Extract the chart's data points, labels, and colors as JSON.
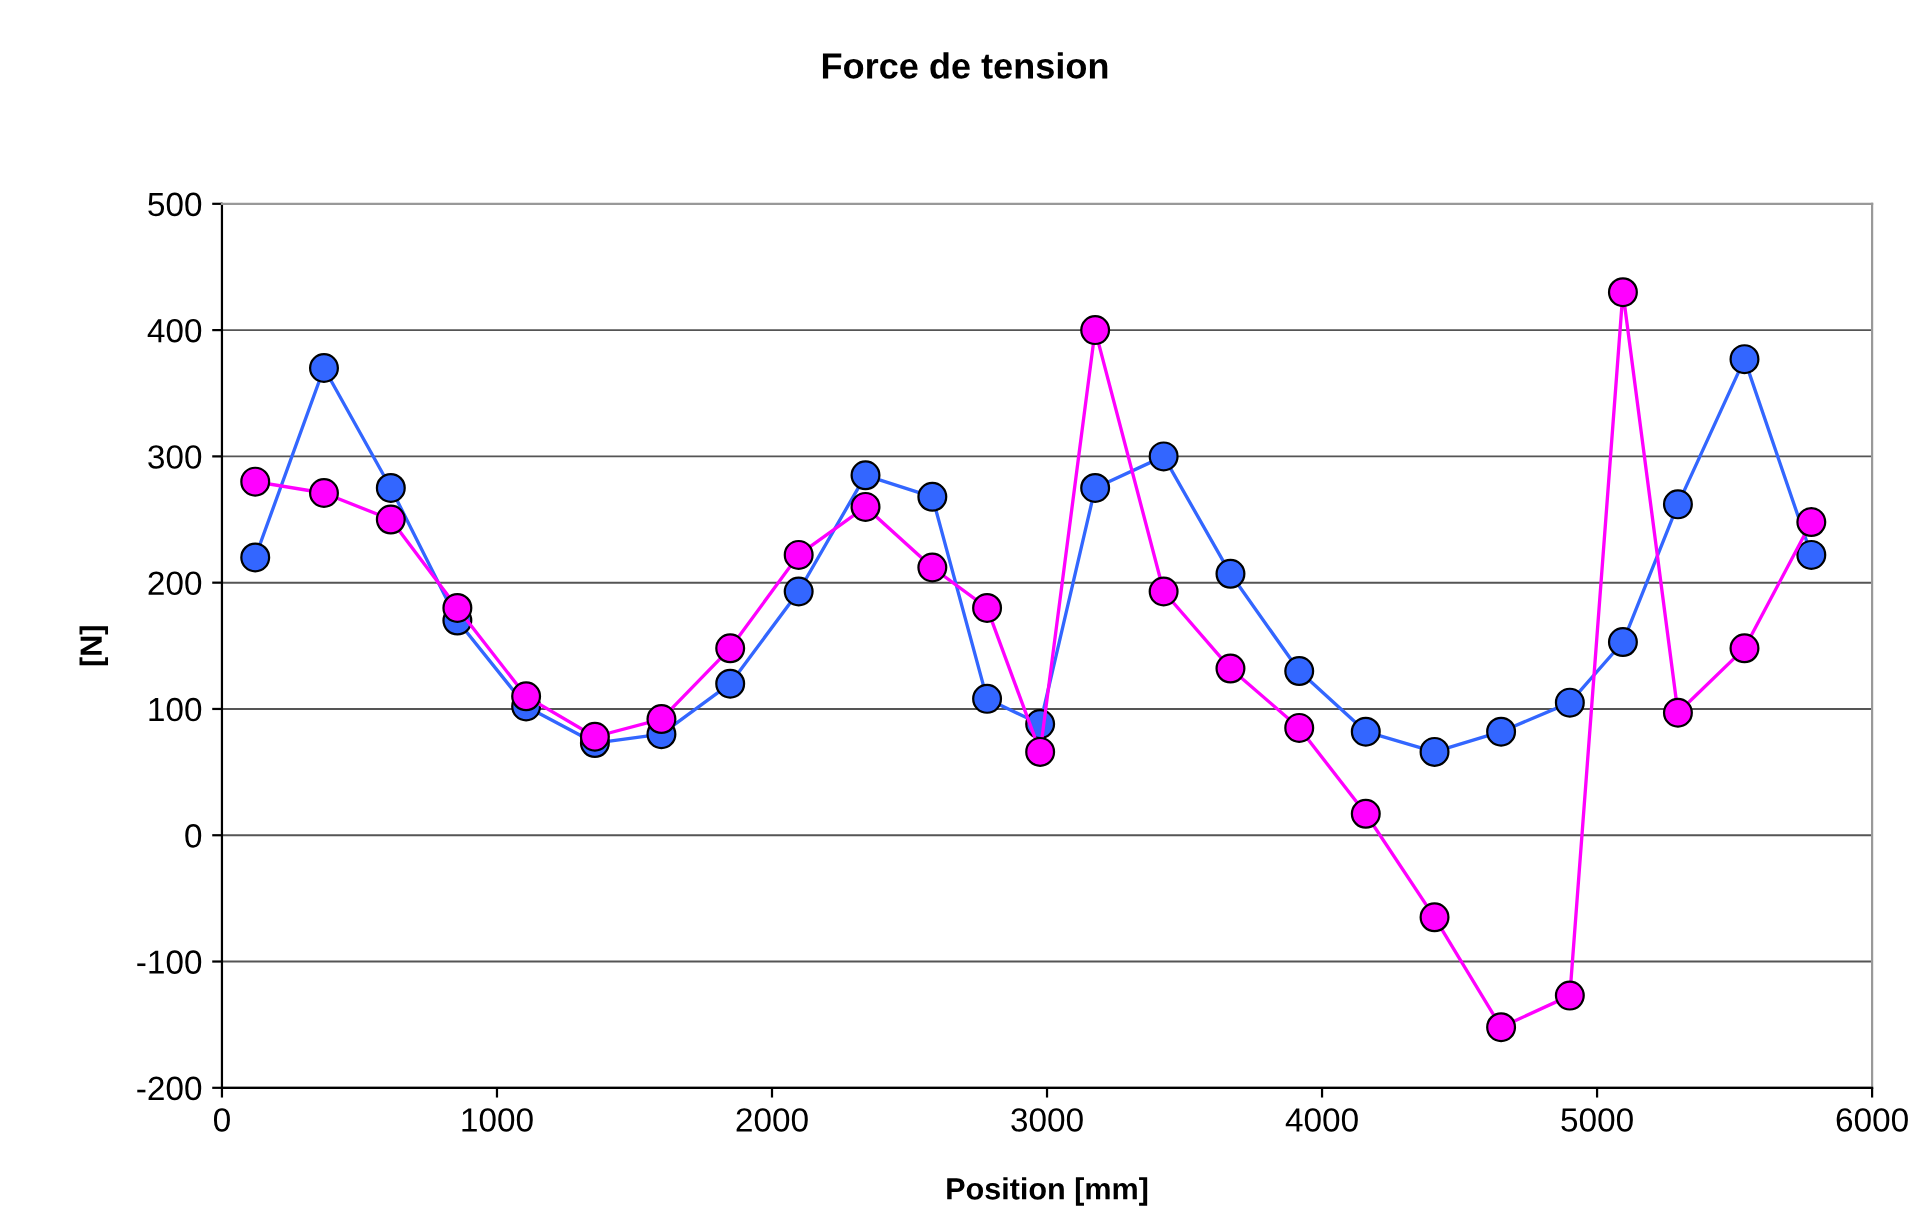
{
  "chart_data": {
    "type": "line",
    "title": "Force de tension",
    "xlabel": "Position [mm]",
    "ylabel": "[N]",
    "x": [
      121,
      371,
      614,
      856,
      1106,
      1356,
      1598,
      1848,
      2097,
      2340,
      2583,
      2782,
      2975,
      3175,
      3424,
      3667,
      3917,
      4159,
      4409,
      4651,
      4901,
      5094,
      5294,
      5536,
      5779
    ],
    "series": [
      {
        "color": "#3366ff",
        "values": [
          220,
          370,
          275,
          170,
          102,
          73,
          80,
          120,
          193,
          285,
          268,
          108,
          88,
          275,
          300,
          207,
          130,
          82,
          66,
          82,
          105,
          153,
          262,
          377,
          222
        ]
      },
      {
        "color": "#ff00ff",
        "values": [
          280,
          271,
          250,
          180,
          110,
          78,
          92,
          148,
          222,
          260,
          212,
          180,
          66,
          400,
          193,
          132,
          85,
          17,
          -65,
          -152,
          -127,
          430,
          97,
          148,
          248
        ]
      }
    ],
    "xlim": [
      0,
      6000
    ],
    "xticks": [
      0,
      1000,
      2000,
      3000,
      4000,
      5000,
      6000
    ],
    "ylim": [
      -200,
      500
    ],
    "yticks": [
      -200,
      -100,
      0,
      100,
      200,
      300,
      400,
      500
    ],
    "grid": "y",
    "marker": "circle",
    "line_style": "solid"
  }
}
